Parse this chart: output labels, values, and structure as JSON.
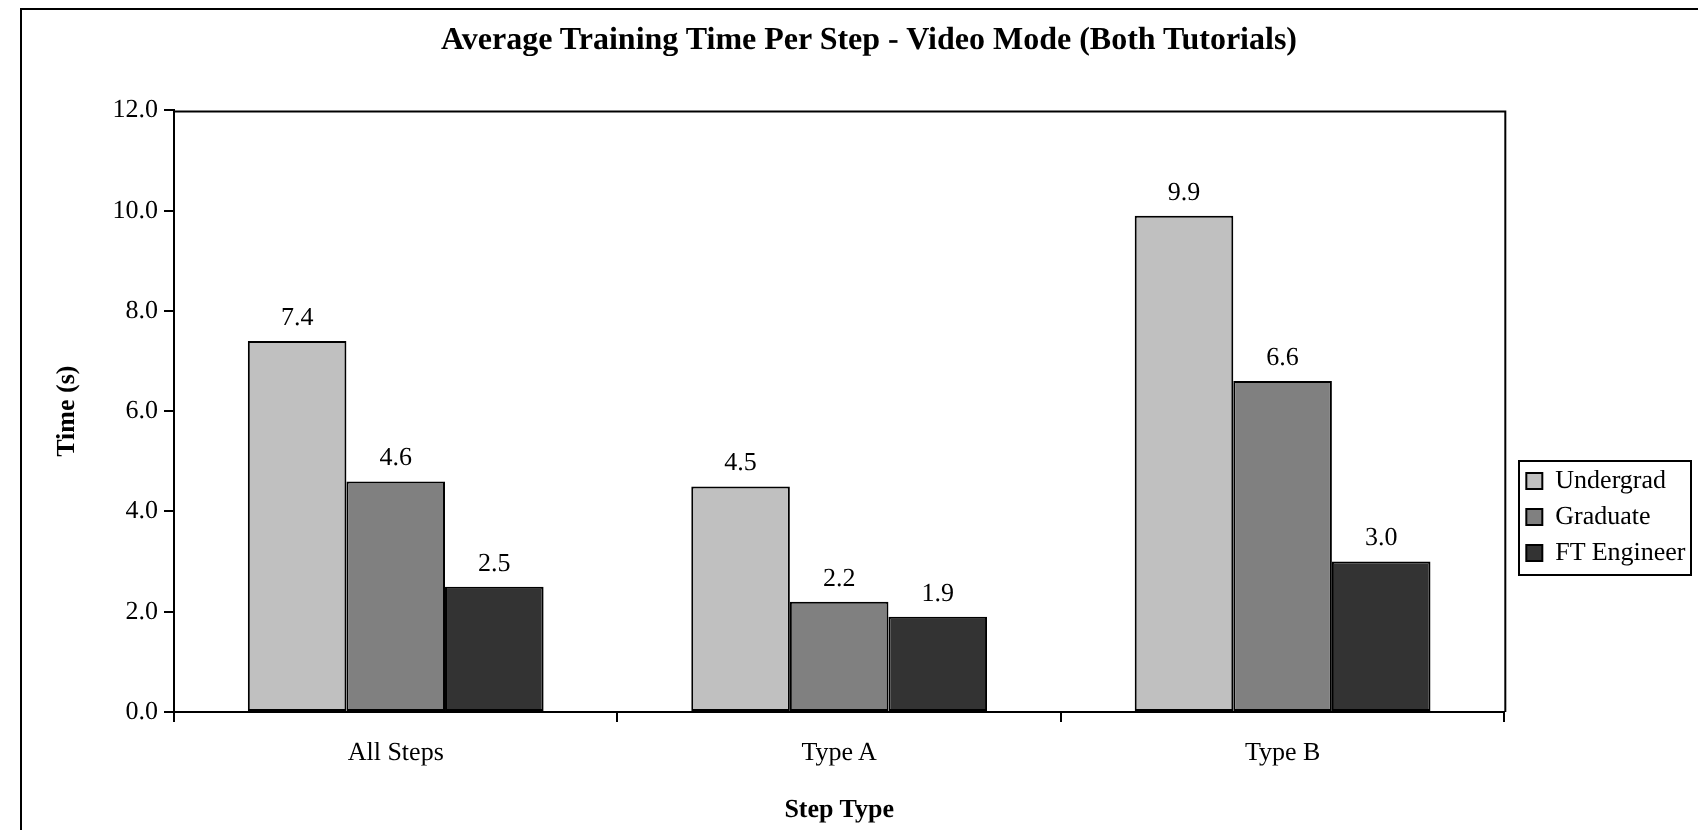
{
  "chart_data": {
    "type": "bar",
    "title": "Average Training Time Per Step - Video Mode (Both Tutorials)",
    "xlabel": "Step Type",
    "ylabel": "Time (s)",
    "categories": [
      "All Steps",
      "Type A",
      "Type B"
    ],
    "series": [
      {
        "name": "Undergrad",
        "color": "#c0c0c0",
        "values": [
          7.4,
          4.5,
          9.9
        ],
        "value_labels": [
          "7.4",
          "4.5",
          "9.9"
        ]
      },
      {
        "name": "Graduate",
        "color": "#808080",
        "values": [
          4.6,
          2.2,
          6.6
        ],
        "value_labels": [
          "4.6",
          "2.2",
          "6.6"
        ]
      },
      {
        "name": "FT Engineer",
        "color": "#333333",
        "values": [
          2.5,
          1.9,
          3.0
        ],
        "value_labels": [
          "2.5",
          "1.9",
          "3.0"
        ]
      }
    ],
    "ylim": [
      0,
      12
    ],
    "yticks": [
      {
        "value": 0,
        "label": "0.0"
      },
      {
        "value": 2,
        "label": "2.0"
      },
      {
        "value": 4,
        "label": "4.0"
      },
      {
        "value": 6,
        "label": "6.0"
      },
      {
        "value": 8,
        "label": "8.0"
      },
      {
        "value": 10,
        "label": "10.0"
      },
      {
        "value": 12,
        "label": "12.0"
      }
    ],
    "grid": false,
    "legend": "right"
  }
}
